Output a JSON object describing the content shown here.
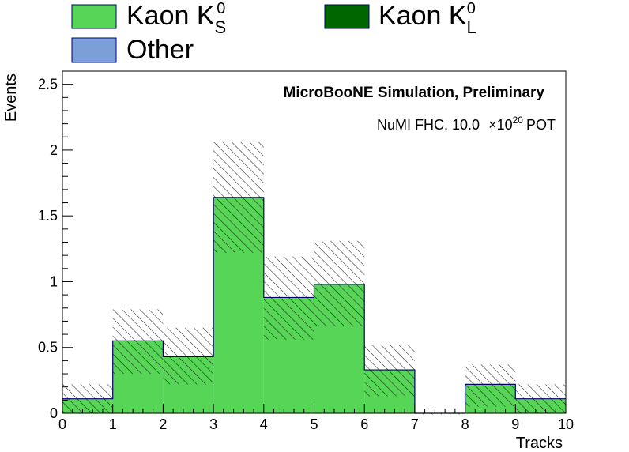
{
  "chart_data": {
    "type": "bar",
    "style": "stacked-histogram",
    "bin_edges": [
      0,
      1,
      2,
      3,
      4,
      5,
      6,
      7,
      8,
      9,
      10
    ],
    "series": [
      {
        "name": "Kaon K",
        "sub": "S",
        "sup": "0",
        "color": "#57d557",
        "values": [
          0.11,
          0.55,
          0.43,
          1.64,
          0.88,
          0.98,
          0.33,
          0.0,
          0.22,
          0.11
        ]
      },
      {
        "name": "Kaon K",
        "sub": "L",
        "sup": "0",
        "color": "#006600",
        "values": [
          0,
          0,
          0,
          0,
          0,
          0,
          0,
          0,
          0,
          0
        ]
      },
      {
        "name": "Other",
        "sub": "",
        "sup": "",
        "color": "#7b9fd8",
        "values": [
          0,
          0,
          0,
          0,
          0,
          0,
          0,
          0,
          0,
          0
        ]
      }
    ],
    "uncertainty": {
      "style": "hatched-band",
      "low": [
        0.0,
        0.3,
        0.22,
        1.22,
        0.56,
        0.66,
        0.13,
        0.0,
        0.05,
        0.0
      ],
      "high": [
        0.22,
        0.79,
        0.65,
        2.06,
        1.19,
        1.31,
        0.52,
        0.0,
        0.37,
        0.22
      ]
    },
    "xlabel": "Tracks",
    "ylabel": "Events",
    "xlim": [
      0,
      10
    ],
    "ylim": [
      0,
      2.6
    ],
    "x_ticks": [
      0,
      1,
      2,
      3,
      4,
      5,
      6,
      7,
      8,
      9,
      10
    ],
    "y_ticks": [
      0,
      0.5,
      1,
      1.5,
      2,
      2.5
    ],
    "y_tick_labels": [
      "0",
      "0.5",
      "1",
      "1.5",
      "2",
      "2.5"
    ],
    "grid": false,
    "legend_position": "top",
    "annotations": {
      "simulation": "MicroBooNE Simulation, Preliminary",
      "pot_prefix": "NuMI FHC, 10.0",
      "pot_times": "×",
      "pot_base": "10",
      "pot_exp": "20",
      "pot_suffix": "POT"
    }
  }
}
